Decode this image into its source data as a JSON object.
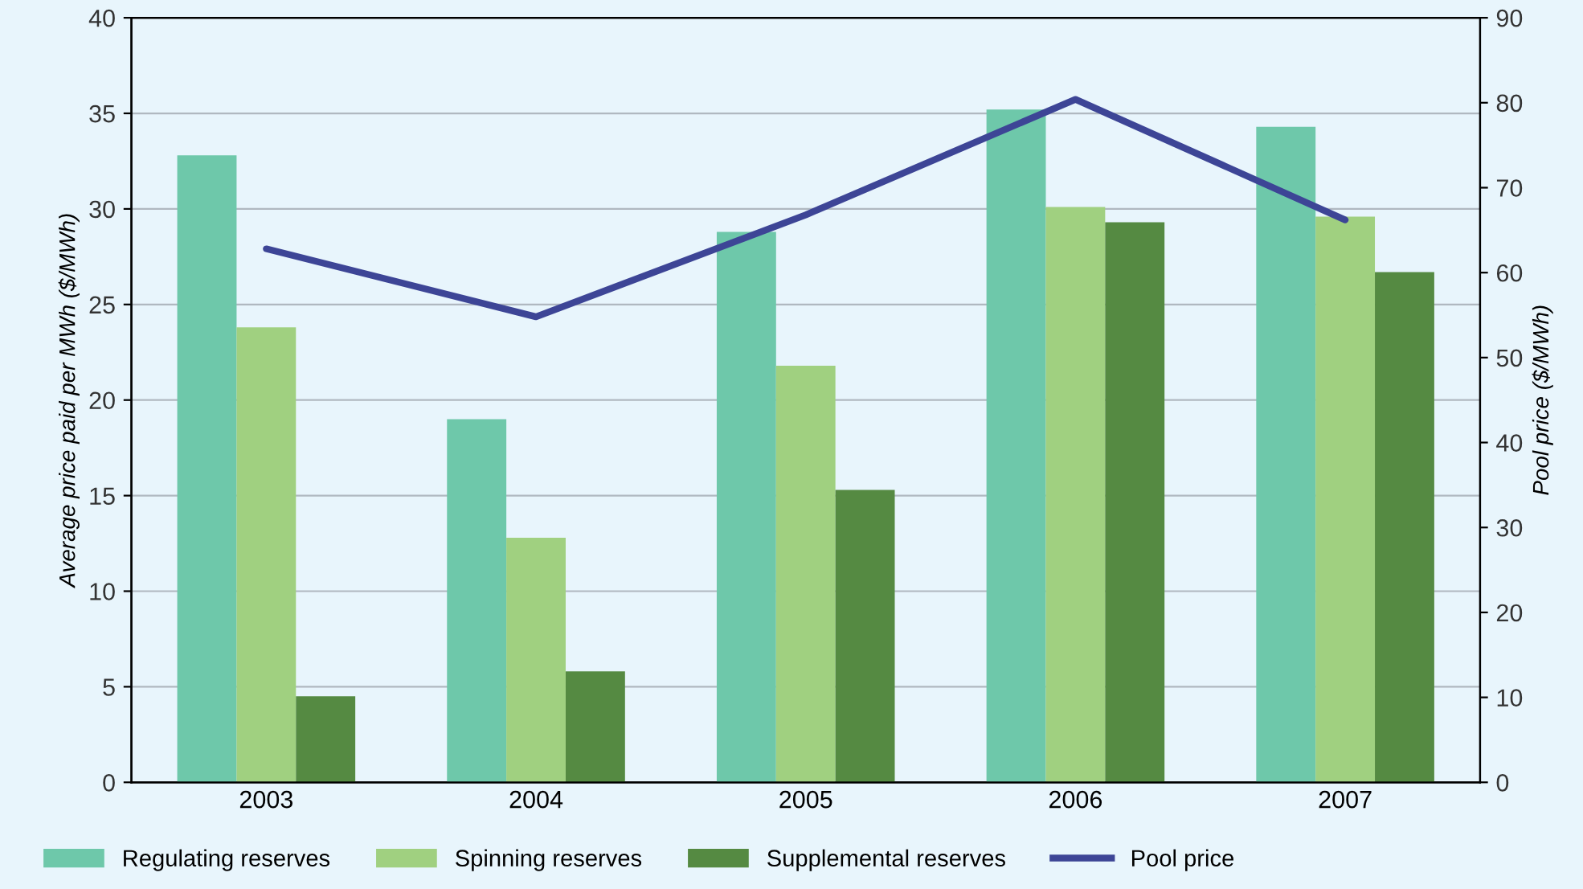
{
  "chart_data": {
    "type": "bar",
    "categories": [
      "2003",
      "2004",
      "2005",
      "2006",
      "2007"
    ],
    "ylabel": "Average price paid per MWh ($/MWh)",
    "y2label": "Pool price ($/MWh)",
    "series": [
      {
        "name": "Regulating reserves",
        "color": "#6ec8aa",
        "values": [
          32.8,
          19.0,
          28.8,
          35.2,
          34.3
        ]
      },
      {
        "name": "Spinning reserves",
        "color": "#a0d080",
        "values": [
          23.8,
          12.8,
          21.8,
          30.1,
          29.6
        ]
      },
      {
        "name": "Supplemental reserves",
        "color": "#558a42",
        "values": [
          4.5,
          5.8,
          15.3,
          29.3,
          26.7
        ]
      },
      {
        "name": "Pool price",
        "type": "line",
        "axis": "y2",
        "color": "#3d4596",
        "values": [
          62.8,
          54.8,
          66.8,
          80.4,
          66.2
        ]
      }
    ],
    "ylim": [
      0,
      40
    ],
    "yticks": [
      0,
      5,
      10,
      15,
      20,
      25,
      30,
      35,
      40
    ],
    "y2lim": [
      0,
      90
    ],
    "y2ticks": [
      0,
      10,
      20,
      30,
      40,
      50,
      60,
      70,
      80,
      90
    ],
    "grid": true,
    "legend": "bottom"
  }
}
